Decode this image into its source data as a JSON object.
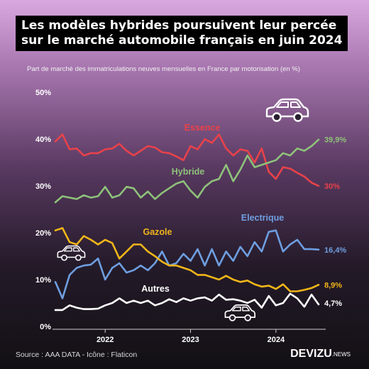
{
  "title_line1": "Les modèles hybrides poursuivent leur percée",
  "title_line2": "sur le marché automobile français en juin 2024",
  "subtitle": "Part de marché des immatriculations neuves mensuelles en France par motorisation (en %)",
  "source": "Source : AAA DATA - Icône : Flaticon",
  "brand_main": "DEVIZU",
  "brand_sub": ".NEWS",
  "icon": "car-icon",
  "chart_data": {
    "type": "line",
    "y_ticks": [
      "0%",
      "10%",
      "20%",
      "30%",
      "40%",
      "50%"
    ],
    "ylim": [
      0,
      50
    ],
    "x_tick_labels": [
      "2022",
      "2023",
      "2024"
    ],
    "x_tick_index": [
      7,
      19,
      31
    ],
    "grid": false,
    "series": [
      {
        "name": "Essence",
        "color": "#e8424a",
        "end_label": "30%",
        "values": [
          39.5,
          41,
          37.8,
          38,
          36.5,
          37,
          37,
          37.8,
          38,
          39,
          37.5,
          36.5,
          37.5,
          38.5,
          38.2,
          37.2,
          37,
          36.3,
          35.5,
          38.5,
          37.8,
          40,
          39.2,
          41,
          38,
          36.5,
          37.8,
          37.5,
          35,
          38,
          33,
          31.5,
          34,
          33.7,
          32.8,
          32,
          30.7,
          30
        ]
      },
      {
        "name": "Hybride",
        "color": "#8ec27a",
        "end_label": "39,9%",
        "values": [
          26.5,
          27.8,
          27.5,
          27.2,
          28,
          27.5,
          27.8,
          29.8,
          27.5,
          28,
          29.8,
          29.5,
          27.5,
          28.8,
          27.2,
          28.5,
          29.5,
          30.5,
          31,
          29,
          27.5,
          29.8,
          31,
          31.5,
          34.5,
          31,
          33.5,
          36.5,
          34,
          34.5,
          35,
          35.5,
          37,
          36.5,
          38,
          37.5,
          38.5,
          39.9
        ]
      },
      {
        "name": "Electrique",
        "color": "#6e9ee0",
        "end_label": "16,4%",
        "values": [
          9.5,
          6,
          11,
          12.5,
          13,
          13.2,
          14.5,
          10,
          12.5,
          13.5,
          11.5,
          12,
          13,
          12,
          13.5,
          16,
          13,
          13.5,
          15.5,
          14,
          16.5,
          13,
          16.5,
          13,
          16,
          14,
          17,
          15,
          18,
          16,
          20.2,
          20.5,
          16,
          17.5,
          18.5,
          16.5,
          16.5,
          16.4
        ]
      },
      {
        "name": "Gazole",
        "color": "#f1b619",
        "end_label": "8,9%",
        "values": [
          20.5,
          21,
          18,
          17.5,
          19.3,
          18.5,
          17.5,
          18.5,
          17.8,
          14.5,
          16,
          17.5,
          17.5,
          16,
          15,
          13.8,
          13,
          13,
          12.5,
          12,
          11,
          11,
          10.5,
          10,
          10.8,
          10,
          9.5,
          9.8,
          9,
          8.5,
          8.7,
          8,
          9,
          7.5,
          7.5,
          7.8,
          8.2,
          8.9
        ]
      },
      {
        "name": "Autres",
        "color": "#ffffff",
        "end_label": "4,7%",
        "values": [
          3.5,
          3.5,
          4.5,
          4,
          3.7,
          3.7,
          3.8,
          4.5,
          5,
          6,
          5,
          5.5,
          5,
          5.5,
          4.5,
          5,
          5.8,
          5.2,
          6,
          5.5,
          6,
          6.2,
          5.5,
          6.8,
          5.7,
          5.8,
          5.5,
          5,
          5.7,
          4,
          6.5,
          4.5,
          5,
          7,
          6,
          4.2,
          6.8,
          4.7
        ]
      }
    ]
  }
}
